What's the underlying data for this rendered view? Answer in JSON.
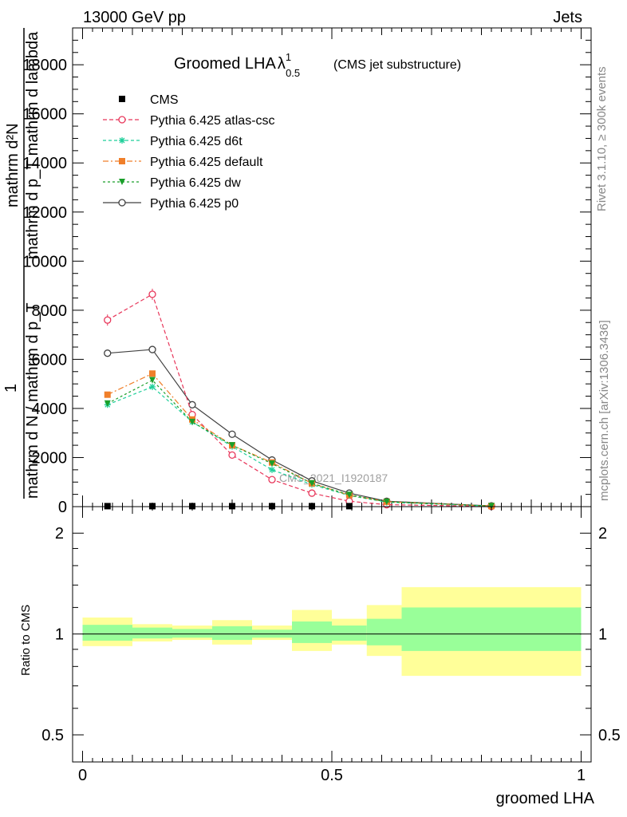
{
  "header": {
    "left": "13000 GeV pp",
    "right": "Jets"
  },
  "side_text": {
    "rivet": "Rivet 3.1.10, ≥ 300k events",
    "mcplots": "mcplots.cern.ch [arXiv:1306.3436]"
  },
  "chart_data": [
    {
      "type": "line",
      "title": "Groomed LHA",
      "title_math": "λ",
      "title_sup": "1",
      "title_sub": "0.5",
      "subtitle": "(CMS jet substructure)",
      "watermark": "CMS_2021_I1920187",
      "ylabel_lines": [
        "mathrm d²N",
        "mathrm d p_T mathrm d lambda",
        "1",
        "mathrm d N / mathrm d p_T"
      ],
      "ylim": [
        0,
        19500
      ],
      "yticks": [
        {
          "v": 0,
          "label": "0"
        },
        {
          "v": 2000,
          "label": "2000"
        },
        {
          "v": 4000,
          "label": "4000"
        },
        {
          "v": 6000,
          "label": "6000"
        },
        {
          "v": 8000,
          "label": "8000"
        },
        {
          "v": 10000,
          "label": "10000"
        },
        {
          "v": 12000,
          "label": "12000"
        },
        {
          "v": 14000,
          "label": "14000"
        },
        {
          "v": 16000,
          "label": "16000"
        },
        {
          "v": 18000,
          "label": "18000"
        }
      ],
      "xlim": [
        -0.02,
        1.02
      ],
      "x": [
        0.05,
        0.14,
        0.22,
        0.3,
        0.38,
        0.46,
        0.535,
        0.61,
        0.82
      ],
      "legend_position": "top-left",
      "series": [
        {
          "name": "CMS",
          "color": "#000000",
          "marker": "square",
          "dash": "",
          "values": [
            20,
            20,
            20,
            20,
            20,
            20,
            20,
            0,
            0
          ]
        },
        {
          "name": "Pythia 6.425 atlas-csc",
          "color": "#e8365a",
          "marker": "open-circle",
          "dash": "5,3",
          "values": [
            7600,
            8650,
            3750,
            2100,
            1100,
            550,
            220,
            80,
            10
          ]
        },
        {
          "name": "Pythia 6.425 d6t",
          "color": "#1fcf9a",
          "marker": "star",
          "dash": "4,3",
          "values": [
            4150,
            4880,
            3450,
            2450,
            1500,
            900,
            450,
            180,
            20
          ]
        },
        {
          "name": "Pythia 6.425 default",
          "color": "#f07f2a",
          "marker": "filled-square",
          "dash": "7,3,2,3",
          "values": [
            4560,
            5420,
            3550,
            2500,
            1800,
            950,
            470,
            200,
            25
          ]
        },
        {
          "name": "Pythia 6.425 dw",
          "color": "#1a9f2a",
          "marker": "triangle-down",
          "dash": "3,3",
          "values": [
            4200,
            5150,
            3450,
            2500,
            1750,
            950,
            480,
            200,
            25
          ]
        },
        {
          "name": "Pythia 6.425 p0",
          "color": "#404040",
          "marker": "open-circle",
          "dash": "",
          "values": [
            6250,
            6400,
            4150,
            2950,
            1900,
            1050,
            550,
            220,
            30
          ]
        }
      ]
    },
    {
      "type": "area",
      "xlabel": "groomed LHA",
      "ylabel": "Ratio to CMS",
      "scale": "log",
      "ylim": [
        0.415,
        2.4
      ],
      "yticks": [
        {
          "v": 0.5,
          "label": "0.5"
        },
        {
          "v": 1,
          "label": "1"
        },
        {
          "v": 2,
          "label": "2"
        }
      ],
      "xlim": [
        -0.02,
        1.02
      ],
      "xticks": [
        {
          "v": 0,
          "label": "0"
        },
        {
          "v": 0.5,
          "label": "0.5"
        },
        {
          "v": 1,
          "label": "1"
        }
      ],
      "band_colors": {
        "outer": "#ffff99",
        "inner": "#99ff99"
      },
      "bins": [
        {
          "x0": 0.0,
          "x1": 0.1,
          "outer": [
            0.92,
            1.12
          ],
          "inner": [
            0.955,
            1.065
          ]
        },
        {
          "x0": 0.1,
          "x1": 0.18,
          "outer": [
            0.95,
            1.07
          ],
          "inner": [
            0.97,
            1.045
          ]
        },
        {
          "x0": 0.18,
          "x1": 0.26,
          "outer": [
            0.96,
            1.06
          ],
          "inner": [
            0.975,
            1.035
          ]
        },
        {
          "x0": 0.26,
          "x1": 0.34,
          "outer": [
            0.93,
            1.1
          ],
          "inner": [
            0.96,
            1.055
          ]
        },
        {
          "x0": 0.34,
          "x1": 0.42,
          "outer": [
            0.96,
            1.06
          ],
          "inner": [
            0.975,
            1.03
          ]
        },
        {
          "x0": 0.42,
          "x1": 0.5,
          "outer": [
            0.89,
            1.18
          ],
          "inner": [
            0.94,
            1.09
          ]
        },
        {
          "x0": 0.5,
          "x1": 0.57,
          "outer": [
            0.93,
            1.11
          ],
          "inner": [
            0.955,
            1.06
          ]
        },
        {
          "x0": 0.57,
          "x1": 0.64,
          "outer": [
            0.86,
            1.22
          ],
          "inner": [
            0.925,
            1.11
          ]
        },
        {
          "x0": 0.64,
          "x1": 1.0,
          "outer": [
            0.75,
            1.38
          ],
          "inner": [
            0.89,
            1.2
          ]
        }
      ]
    }
  ]
}
